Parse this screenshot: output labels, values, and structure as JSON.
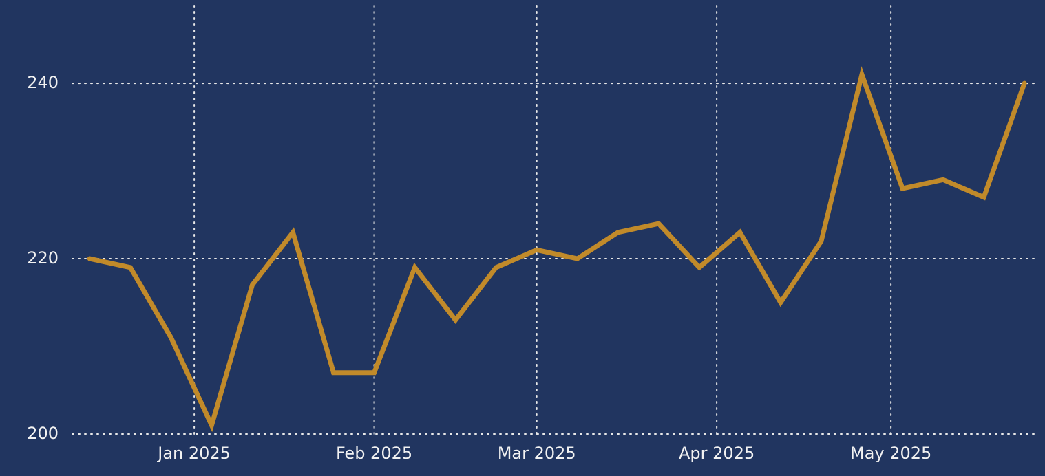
{
  "chart_data": {
    "type": "line",
    "x": [
      "2024-12-14",
      "2024-12-21",
      "2024-12-28",
      "2025-01-04",
      "2025-01-11",
      "2025-01-18",
      "2025-01-25",
      "2025-02-01",
      "2025-02-08",
      "2025-02-15",
      "2025-02-22",
      "2025-03-01",
      "2025-03-08",
      "2025-03-15",
      "2025-03-22",
      "2025-03-29",
      "2025-04-05",
      "2025-04-12",
      "2025-04-19",
      "2025-04-26",
      "2025-05-03",
      "2025-05-10",
      "2025-05-17",
      "2025-05-24"
    ],
    "series": [
      {
        "color": "#c18a2a",
        "values": [
          220,
          219,
          211,
          201,
          217,
          223,
          207,
          207,
          219,
          213,
          219,
          221,
          220,
          223,
          224,
          219,
          223,
          215,
          222,
          241,
          228,
          229,
          227,
          240
        ]
      }
    ],
    "xlim": [
      "2024-12-11",
      "2025-05-26"
    ],
    "xticks": [
      {
        "value": "2025-01-01",
        "label": "Jan 2025"
      },
      {
        "value": "2025-02-01",
        "label": "Feb 2025"
      },
      {
        "value": "2025-03-01",
        "label": "Mar 2025"
      },
      {
        "value": "2025-04-01",
        "label": "Apr 2025"
      },
      {
        "value": "2025-05-01",
        "label": "May 2025"
      }
    ],
    "ylim": [
      200,
      249.5
    ],
    "yticks": [
      200,
      220,
      240
    ],
    "grid": true
  }
}
